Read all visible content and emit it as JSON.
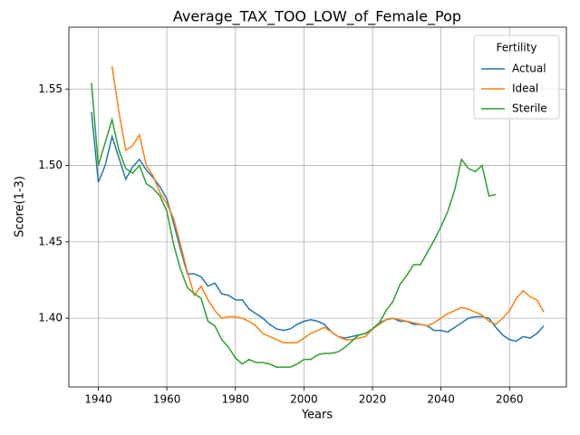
{
  "chart_data": {
    "type": "line",
    "title": "Average_TAX_TOO_LOW_of_Female_Pop",
    "xlabel": "Years",
    "ylabel": "Score(1-3)",
    "legend_title": "Fertility",
    "legend": "upper right",
    "grid": true,
    "xlim": [
      1931.4,
      2076.6
    ],
    "ylim": [
      1.355,
      1.5905
    ],
    "xticks": [
      1940,
      1960,
      1980,
      2000,
      2020,
      2040,
      2060
    ],
    "yticks": [
      {
        "value": 1.4,
        "label": "1.40"
      },
      1.45,
      {
        "value": 1.5,
        "label": "1.50"
      },
      1.55
    ],
    "x": [
      1938,
      1940,
      1942,
      1944,
      1946,
      1948,
      1950,
      1952,
      1954,
      1956,
      1958,
      1960,
      1962,
      1964,
      1966,
      1968,
      1970,
      1972,
      1974,
      1976,
      1978,
      1980,
      1982,
      1984,
      1986,
      1988,
      1990,
      1992,
      1994,
      1996,
      1998,
      2000,
      2002,
      2004,
      2006,
      2008,
      2010,
      2012,
      2014,
      2016,
      2018,
      2020,
      2022,
      2024,
      2026,
      2028,
      2030,
      2032,
      2034,
      2036,
      2038,
      2040,
      2042,
      2044,
      2046,
      2048,
      2050,
      2052,
      2054,
      2056,
      2058,
      2060,
      2062,
      2064,
      2066,
      2068,
      2070
    ],
    "series": [
      {
        "name": "Actual",
        "color": "#1f77b4",
        "values": [
          1.535,
          1.489,
          1.5,
          1.519,
          1.505,
          1.491,
          1.499,
          1.504,
          1.497,
          1.492,
          1.486,
          1.478,
          1.462,
          1.445,
          1.429,
          1.429,
          1.427,
          1.421,
          1.423,
          1.416,
          1.415,
          1.412,
          1.412,
          1.406,
          1.403,
          1.4,
          1.396,
          1.393,
          1.392,
          1.393,
          1.396,
          1.398,
          1.399,
          1.398,
          1.396,
          1.391,
          1.388,
          1.387,
          1.388,
          1.389,
          1.39,
          1.393,
          1.397,
          1.399,
          1.4,
          1.398,
          1.398,
          1.396,
          1.396,
          1.395,
          1.392,
          1.392,
          1.391,
          1.394,
          1.397,
          1.4,
          1.401,
          1.401,
          1.4,
          1.394,
          1.389,
          1.386,
          1.385,
          1.388,
          1.387,
          1.39,
          1.395
        ]
      },
      {
        "name": "Ideal",
        "color": "#ff7f0e",
        "values": [
          null,
          null,
          null,
          1.565,
          1.535,
          1.51,
          1.513,
          1.52,
          1.5,
          1.493,
          1.482,
          1.475,
          1.465,
          1.448,
          1.43,
          1.415,
          1.421,
          1.412,
          1.405,
          1.4,
          1.401,
          1.401,
          1.4,
          1.398,
          1.395,
          1.39,
          1.388,
          1.386,
          1.384,
          1.384,
          1.384,
          1.387,
          1.39,
          1.392,
          1.394,
          1.391,
          1.388,
          1.386,
          1.386,
          1.387,
          1.388,
          1.393,
          1.396,
          1.399,
          1.4,
          1.399,
          1.398,
          1.397,
          1.396,
          1.395,
          1.397,
          1.4,
          1.403,
          1.405,
          1.407,
          1.406,
          1.404,
          1.402,
          1.398,
          1.396,
          1.4,
          1.405,
          1.413,
          1.418,
          1.414,
          1.412,
          1.404
        ]
      },
      {
        "name": "Sterile",
        "color": "#2ca02c",
        "values": [
          1.554,
          1.5,
          1.515,
          1.53,
          1.51,
          1.498,
          1.495,
          1.5,
          1.488,
          1.485,
          1.48,
          1.47,
          1.448,
          1.432,
          1.42,
          1.416,
          1.413,
          1.398,
          1.395,
          1.386,
          1.381,
          1.374,
          1.37,
          1.373,
          1.371,
          1.371,
          1.37,
          1.368,
          1.368,
          1.368,
          1.37,
          1.373,
          1.373,
          1.376,
          1.377,
          1.377,
          1.378,
          1.381,
          1.385,
          1.389,
          1.39,
          1.393,
          1.397,
          1.405,
          1.411,
          1.422,
          1.428,
          1.435,
          1.435,
          1.443,
          1.451,
          1.46,
          1.47,
          1.484,
          1.504,
          1.498,
          1.496,
          1.5,
          1.48,
          1.481,
          null,
          null,
          null,
          null,
          null,
          null,
          null
        ]
      }
    ]
  }
}
